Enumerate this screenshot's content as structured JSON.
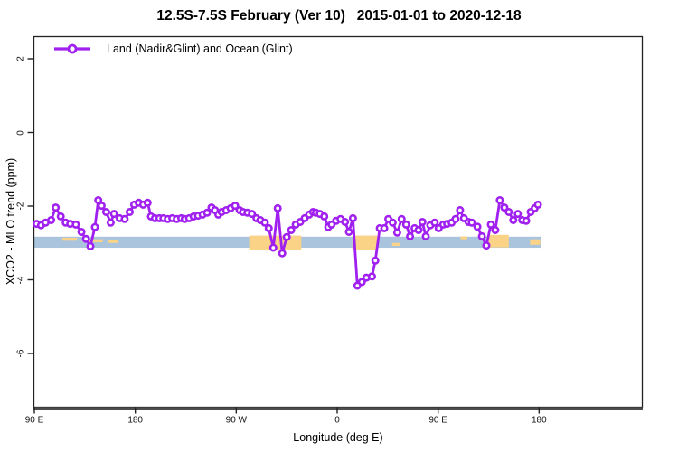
{
  "title": "12.5S-7.5S February (Ver 10)   2015-01-01 to 2020-12-18",
  "chart_data": {
    "type": "line",
    "title": "12.5S-7.5S February (Ver 10)   2015-01-01 to 2020-12-18",
    "xlabel": "Longitude (deg E)",
    "ylabel": "XCO2 - MLO trend (ppm)",
    "legend_position": "top-left",
    "grid": false,
    "x_axis": {
      "note": "eastward longitude wrapping around the globe, axis spans 450 degrees",
      "range": [
        89,
        542
      ],
      "ticks": [
        {
          "pos": 90,
          "label": "90 E"
        },
        {
          "pos": 180,
          "label": "180"
        },
        {
          "pos": 270,
          "label": "90 W"
        },
        {
          "pos": 360,
          "label": "0"
        },
        {
          "pos": 450,
          "label": "90 E"
        },
        {
          "pos": 540,
          "label": "180"
        }
      ]
    },
    "y_axis": {
      "range": [
        -7.45,
        2.61
      ],
      "ticks": [
        2,
        0,
        -2,
        -4,
        -6
      ]
    },
    "bands": {
      "blue_band": {
        "color": "#aac4de",
        "from": 89.3,
        "to": 542,
        "top": -2.83,
        "bottom": -3.13
      },
      "orange_color": "#fbd386",
      "orange_segments": [
        {
          "from": 281.5,
          "to": 328,
          "top": -2.8,
          "bottom": -3.18
        },
        {
          "from": 373.5,
          "to": 396,
          "top": -2.8,
          "bottom": -3.18
        },
        {
          "from": 115,
          "to": 128,
          "top": -2.86,
          "bottom": -2.94
        },
        {
          "from": 133,
          "to": 151,
          "top": -2.9,
          "bottom": -2.98
        },
        {
          "from": 156,
          "to": 165,
          "top": -2.93,
          "bottom": -3.0
        },
        {
          "from": 409,
          "to": 416,
          "top": -3.0,
          "bottom": -3.08
        },
        {
          "from": 470,
          "to": 476,
          "top": -2.82,
          "bottom": -2.9
        },
        {
          "from": 495,
          "to": 513,
          "top": -2.78,
          "bottom": -3.12
        },
        {
          "from": 532,
          "to": 541,
          "top": -2.9,
          "bottom": -3.05
        }
      ]
    },
    "series": [
      {
        "name": "Land (Nadir&Glint) and Ocean (Glint)",
        "color": "#a020f0",
        "marker": "open-circle",
        "points": [
          [
            92,
            -2.48
          ],
          [
            96,
            -2.52
          ],
          [
            100,
            -2.45
          ],
          [
            105,
            -2.38
          ],
          [
            109,
            -2.04
          ],
          [
            113.5,
            -2.28
          ],
          [
            118,
            -2.45
          ],
          [
            122,
            -2.48
          ],
          [
            127,
            -2.5
          ],
          [
            132,
            -2.7
          ],
          [
            136,
            -2.89
          ],
          [
            140,
            -3.09
          ],
          [
            144,
            -2.57
          ],
          [
            147,
            -1.84
          ],
          [
            150,
            -1.99
          ],
          [
            154,
            -2.16
          ],
          [
            158,
            -2.45
          ],
          [
            161,
            -2.21
          ],
          [
            166,
            -2.33
          ],
          [
            170.5,
            -2.35
          ],
          [
            175,
            -2.16
          ],
          [
            179,
            -1.96
          ],
          [
            183,
            -1.91
          ],
          [
            187,
            -1.96
          ],
          [
            191,
            -1.91
          ],
          [
            194,
            -2.28
          ],
          [
            197.5,
            -2.33
          ],
          [
            201.5,
            -2.33
          ],
          [
            205,
            -2.33
          ],
          [
            209,
            -2.35
          ],
          [
            213,
            -2.33
          ],
          [
            217,
            -2.35
          ],
          [
            221,
            -2.33
          ],
          [
            224,
            -2.35
          ],
          [
            228,
            -2.33
          ],
          [
            232,
            -2.28
          ],
          [
            236,
            -2.26
          ],
          [
            240,
            -2.23
          ],
          [
            244,
            -2.18
          ],
          [
            248,
            -2.04
          ],
          [
            251,
            -2.11
          ],
          [
            254,
            -2.23
          ],
          [
            257,
            -2.16
          ],
          [
            261,
            -2.11
          ],
          [
            265,
            -2.06
          ],
          [
            269,
            -1.99
          ],
          [
            273,
            -2.11
          ],
          [
            276,
            -2.16
          ],
          [
            280,
            -2.18
          ],
          [
            284,
            -2.21
          ],
          [
            288,
            -2.33
          ],
          [
            291.5,
            -2.38
          ],
          [
            295.5,
            -2.45
          ],
          [
            299,
            -2.6
          ],
          [
            303,
            -3.13
          ],
          [
            307,
            -2.06
          ],
          [
            311,
            -3.28
          ],
          [
            315,
            -2.84
          ],
          [
            319,
            -2.65
          ],
          [
            323,
            -2.5
          ],
          [
            327,
            -2.43
          ],
          [
            331,
            -2.33
          ],
          [
            335,
            -2.23
          ],
          [
            338.5,
            -2.16
          ],
          [
            341,
            -2.18
          ],
          [
            344.5,
            -2.21
          ],
          [
            348.5,
            -2.28
          ],
          [
            352,
            -2.57
          ],
          [
            355,
            -2.5
          ],
          [
            359,
            -2.4
          ],
          [
            363,
            -2.35
          ],
          [
            367,
            -2.43
          ],
          [
            370.5,
            -2.7
          ],
          [
            374,
            -2.33
          ],
          [
            378,
            -4.16
          ],
          [
            382,
            -4.06
          ],
          [
            386,
            -3.94
          ],
          [
            391,
            -3.91
          ],
          [
            394,
            -3.48
          ],
          [
            398,
            -2.6
          ],
          [
            402,
            -2.6
          ],
          [
            405.5,
            -2.35
          ],
          [
            409.5,
            -2.45
          ],
          [
            413.5,
            -2.72
          ],
          [
            417.5,
            -2.35
          ],
          [
            421.5,
            -2.5
          ],
          [
            425,
            -2.82
          ],
          [
            429,
            -2.6
          ],
          [
            432.5,
            -2.65
          ],
          [
            436,
            -2.43
          ],
          [
            439,
            -2.82
          ],
          [
            443,
            -2.52
          ],
          [
            447,
            -2.45
          ],
          [
            450.5,
            -2.6
          ],
          [
            454.5,
            -2.5
          ],
          [
            458,
            -2.48
          ],
          [
            462,
            -2.45
          ],
          [
            465.5,
            -2.35
          ],
          [
            469.5,
            -2.11
          ],
          [
            473,
            -2.33
          ],
          [
            477,
            -2.43
          ],
          [
            480,
            -2.45
          ],
          [
            485,
            -2.56
          ],
          [
            489,
            -2.82
          ],
          [
            493,
            -3.07
          ],
          [
            497,
            -2.5
          ],
          [
            501,
            -2.65
          ],
          [
            505,
            -1.84
          ],
          [
            509,
            -2.04
          ],
          [
            513,
            -2.16
          ],
          [
            517,
            -2.38
          ],
          [
            521,
            -2.21
          ],
          [
            525,
            -2.38
          ],
          [
            528.5,
            -2.4
          ],
          [
            532.5,
            -2.16
          ],
          [
            536,
            -2.06
          ],
          [
            539,
            -1.96
          ]
        ]
      }
    ],
    "colors": {
      "axis": "#222222",
      "thick_axis": "#4d4d4d",
      "marker_fill": "#ffffff"
    }
  }
}
